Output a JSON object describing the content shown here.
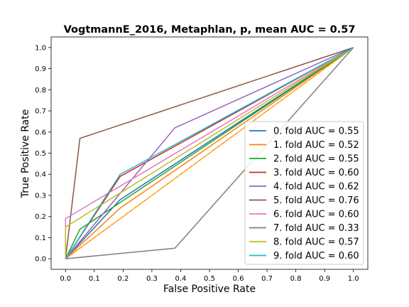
{
  "chart_data": {
    "type": "line",
    "title": "VogtmannE_2016, Metaphlan, p, mean AUC =  0.57",
    "xlabel": "False Positive Rate",
    "ylabel": "True Positive Rate",
    "xlim": [
      -0.05,
      1.05
    ],
    "ylim": [
      -0.05,
      1.05
    ],
    "xticks": [
      0.0,
      0.1,
      0.2,
      0.3,
      0.4,
      0.5,
      0.6,
      0.7,
      0.8,
      0.9,
      1.0
    ],
    "yticks": [
      0.0,
      0.1,
      0.2,
      0.3,
      0.4,
      0.5,
      0.6,
      0.7,
      0.8,
      0.9,
      1.0
    ],
    "tick_labels": [
      "0.0",
      "0.1",
      "0.2",
      "0.3",
      "0.4",
      "0.5",
      "0.6",
      "0.7",
      "0.8",
      "0.9",
      "1.0"
    ],
    "grid": false,
    "legend_position": "lower right",
    "series": [
      {
        "name": "0. fold AUC = 0.55",
        "color": "#1f77b4",
        "x": [
          0,
          0.19,
          1
        ],
        "y": [
          0,
          0.28,
          1
        ]
      },
      {
        "name": "1. fold AUC = 0.52",
        "color": "#ff7f0e",
        "x": [
          0,
          0.19,
          1
        ],
        "y": [
          0,
          0.24,
          1
        ]
      },
      {
        "name": "2. fold AUC = 0.55",
        "color": "#2ca02c",
        "x": [
          0,
          0.05,
          1
        ],
        "y": [
          0,
          0.14,
          1
        ]
      },
      {
        "name": "3. fold AUC = 0.60",
        "color": "#d62728",
        "x": [
          0,
          0.19,
          1
        ],
        "y": [
          0,
          0.39,
          1
        ]
      },
      {
        "name": "4. fold AUC = 0.62",
        "color": "#9467bd",
        "x": [
          0,
          0.38,
          1
        ],
        "y": [
          0,
          0.62,
          1
        ]
      },
      {
        "name": "5. fold AUC = 0.76",
        "color": "#8c564b",
        "x": [
          0,
          0.05,
          1
        ],
        "y": [
          0,
          0.57,
          1
        ]
      },
      {
        "name": "6. fold AUC = 0.60",
        "color": "#e377c2",
        "x": [
          0,
          0,
          1
        ],
        "y": [
          0,
          0.19,
          1
        ]
      },
      {
        "name": "7. fold AUC = 0.33",
        "color": "#7f7f7f",
        "x": [
          0,
          0.38,
          1
        ],
        "y": [
          0,
          0.05,
          1
        ]
      },
      {
        "name": "8. fold AUC = 0.57",
        "color": "#bcbd22",
        "x": [
          0,
          0,
          1
        ],
        "y": [
          0,
          0.15,
          1
        ]
      },
      {
        "name": "9. fold AUC = 0.60",
        "color": "#17becf",
        "x": [
          0,
          0.19,
          1
        ],
        "y": [
          0,
          0.4,
          1
        ]
      }
    ],
    "reference_lines": [
      {
        "style": "dashed",
        "color": "#ff7f0e",
        "x": [
          0,
          1
        ],
        "y": [
          0,
          1
        ]
      },
      {
        "style": "dashed",
        "color": "#ffa500",
        "x": [
          0,
          1
        ],
        "y": [
          0,
          1
        ]
      }
    ]
  }
}
